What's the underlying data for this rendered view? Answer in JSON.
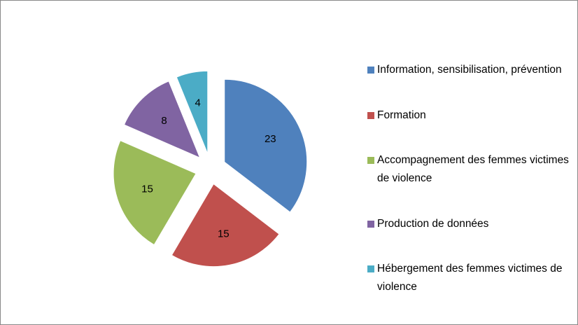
{
  "chart_data": {
    "type": "pie",
    "categories": [
      "Information, sensibilisation, prévention",
      "Formation",
      "Accompagnement des femmes victimes de violence",
      "Production de données",
      "Hébergement des femmes victimes de violence"
    ],
    "values": [
      23,
      15,
      15,
      8,
      4
    ],
    "colors": [
      "#4f81bd",
      "#c0504d",
      "#9bbb59",
      "#8064a2",
      "#4bacc6"
    ],
    "exploded": true,
    "legend": "right"
  }
}
